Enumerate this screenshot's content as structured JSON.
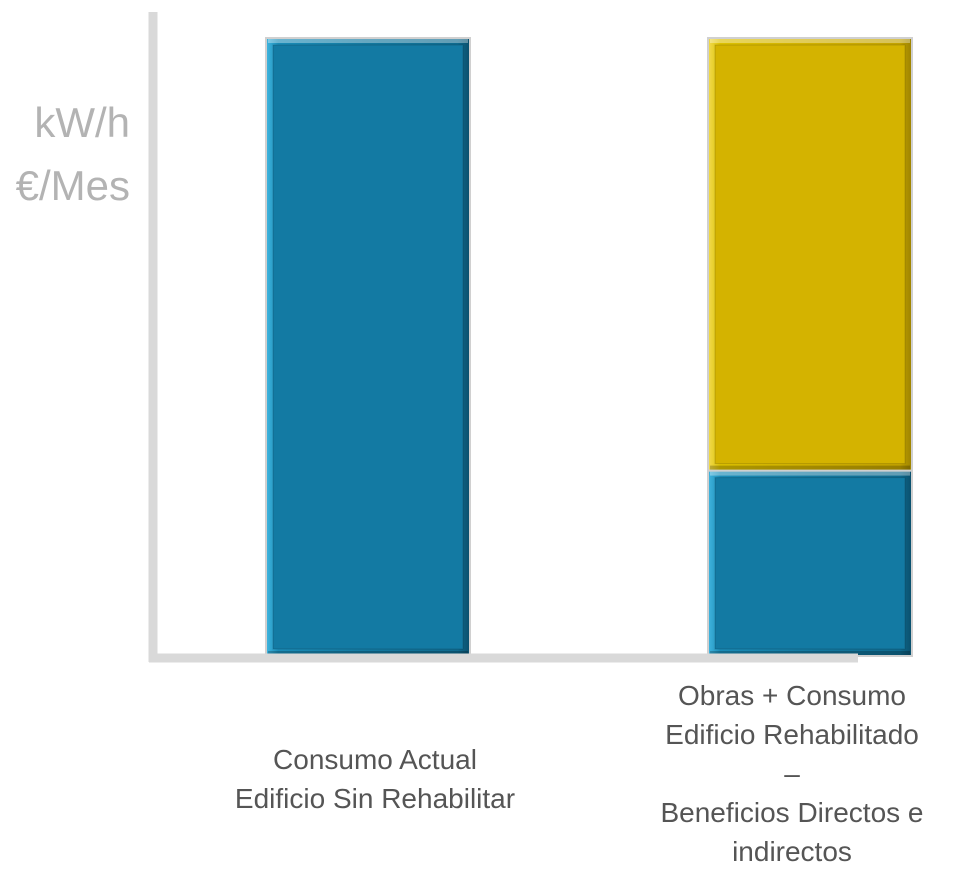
{
  "chart_data": {
    "type": "bar",
    "stacked": true,
    "ylabel_lines": [
      "kW/h",
      "€/Mes"
    ],
    "categories": [
      "Consumo Actual\nEdificio Sin Rehabilitar",
      "Obras + Consumo\nEdificio Rehabilitado\n–\nBeneficios Directos e\nindirectos"
    ],
    "series": [
      {
        "color": "#137aa3",
        "values": [
          100,
          30
        ]
      },
      {
        "color": "#d4b300",
        "values": [
          0,
          70
        ]
      }
    ],
    "ylim": [
      0,
      100
    ],
    "grid": false,
    "axis_color": "#d9d9d9"
  }
}
